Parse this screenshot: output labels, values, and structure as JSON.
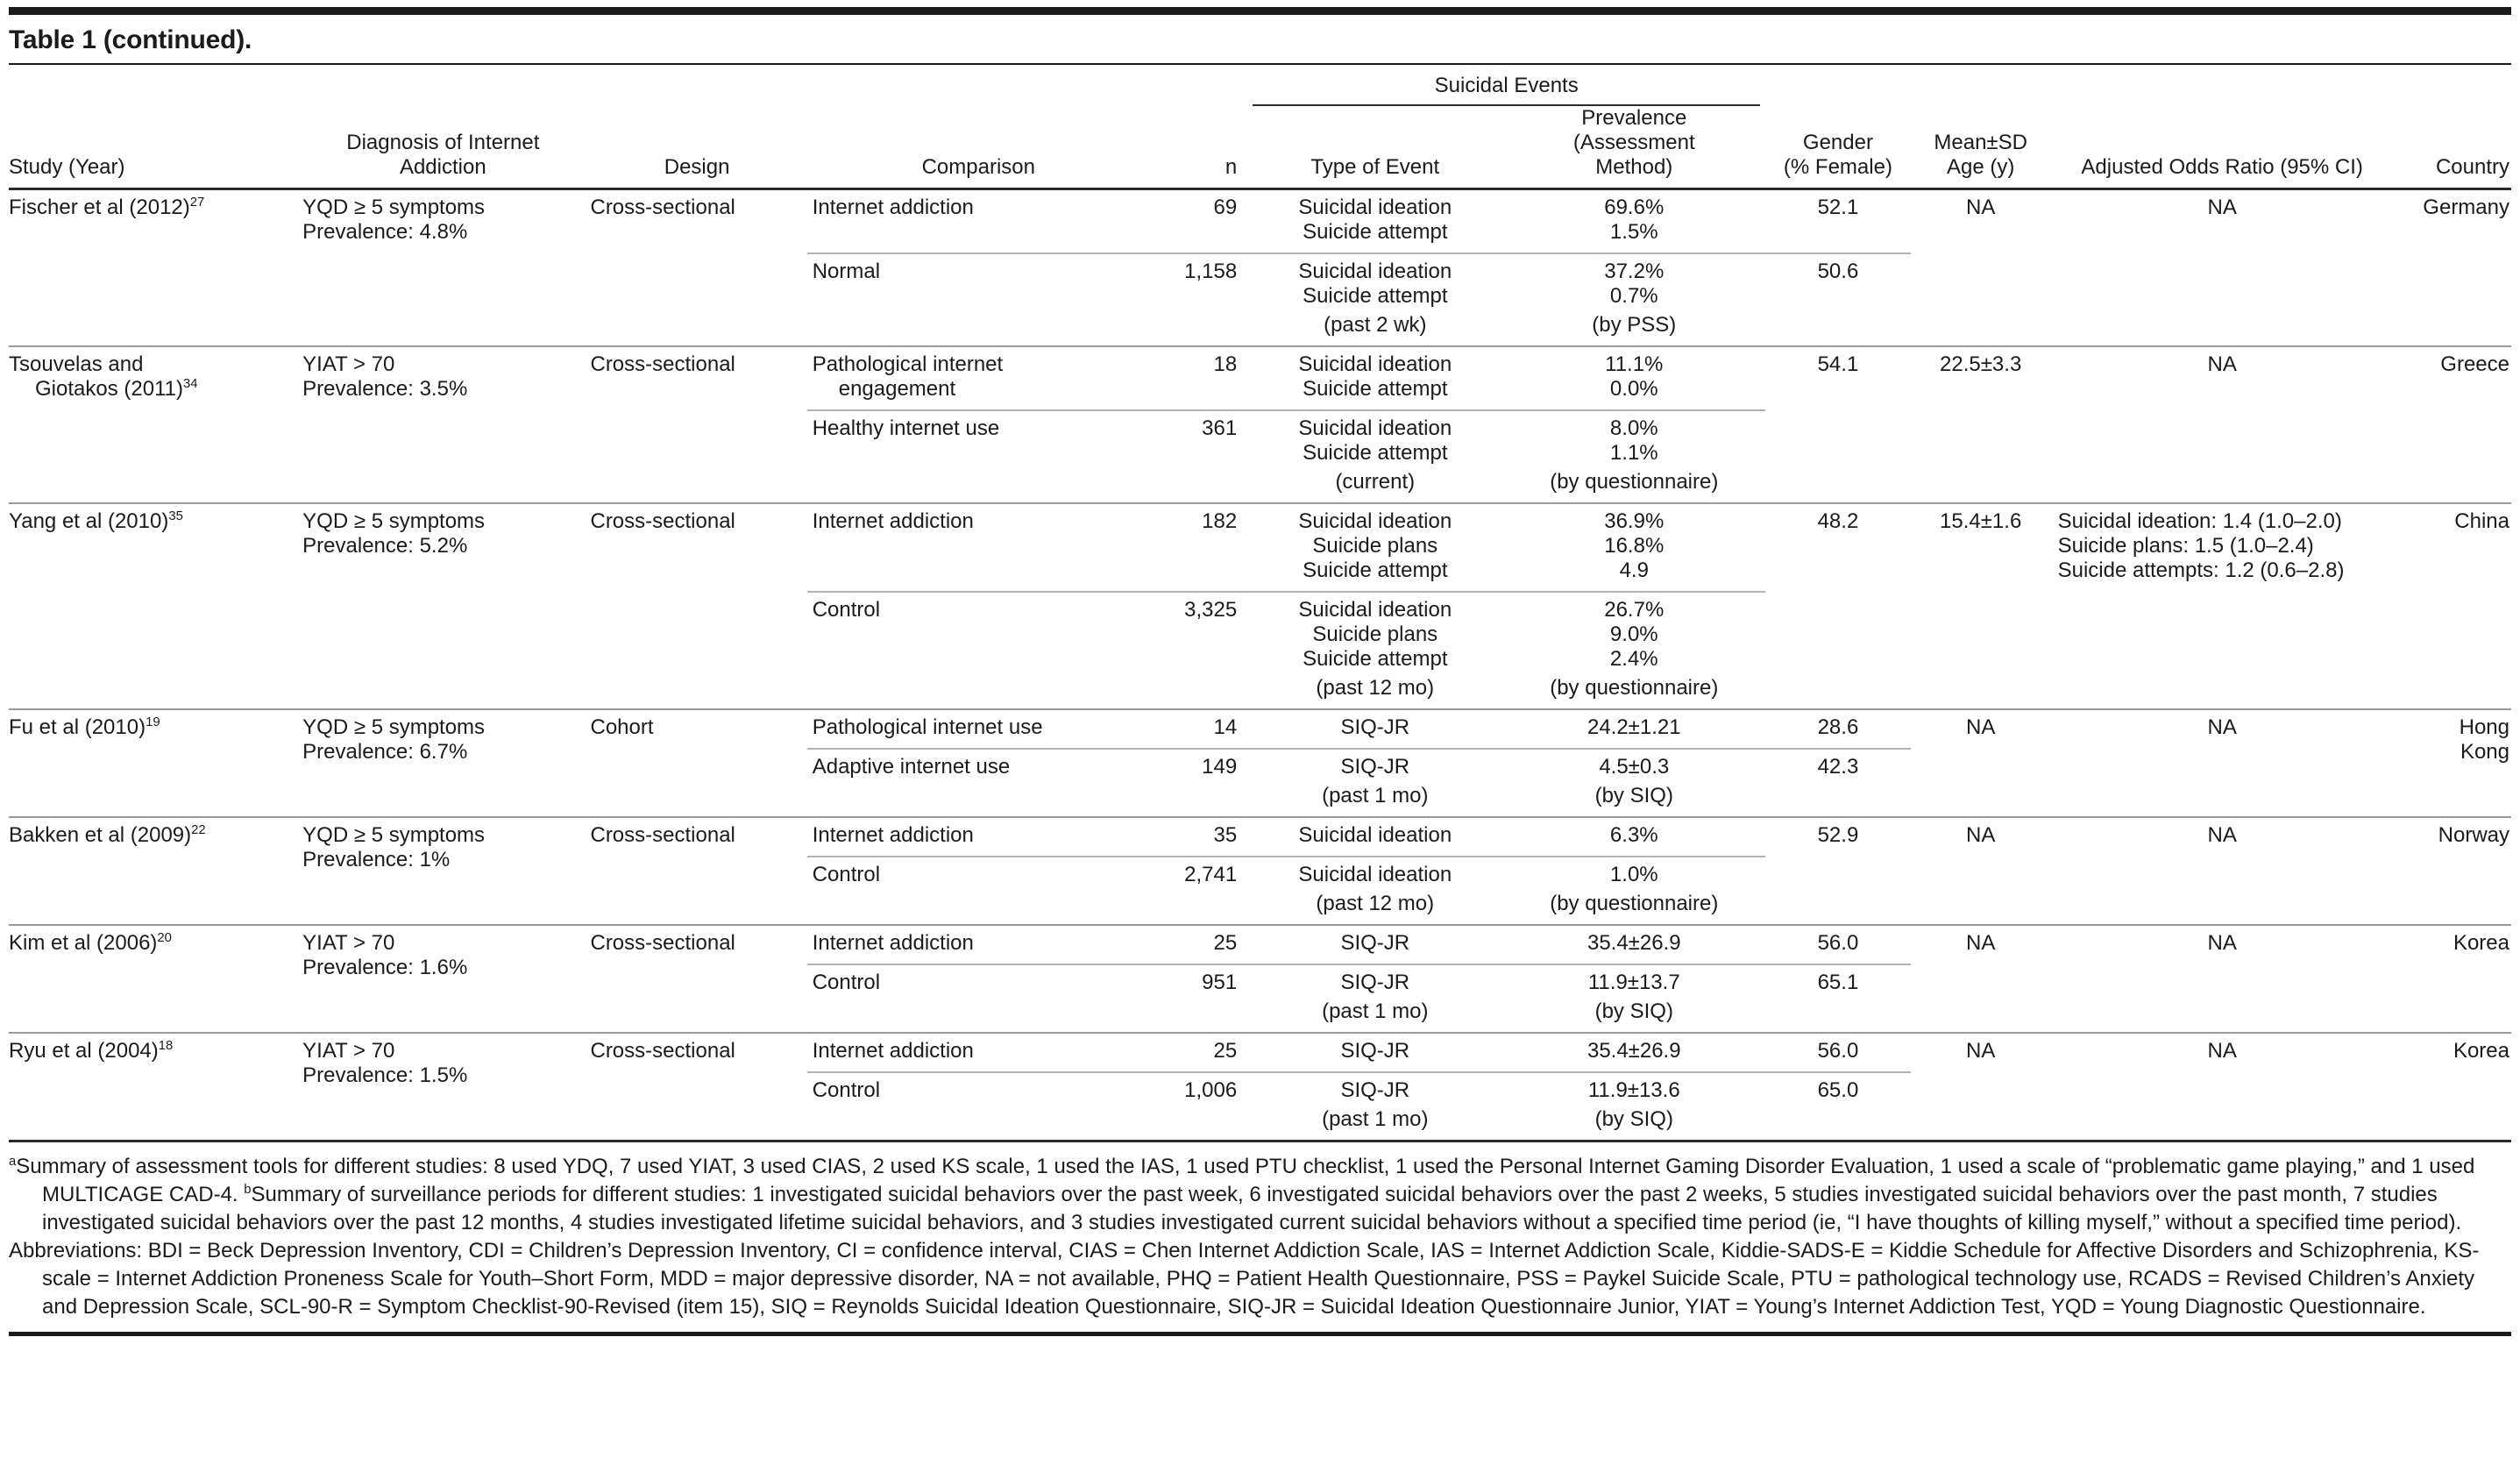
{
  "page": {
    "title": "Table 1 (continued)."
  },
  "colors": {
    "text": "#1b1b1b",
    "rule_dark": "#1a1a1a",
    "rule_gray": "#9a9a9a",
    "rule_light": "#b3b3b3"
  },
  "table": {
    "span_header": {
      "label": "Suicidal Events"
    },
    "columns": {
      "study": "Study (Year)",
      "diagnosis": [
        "Diagnosis of Internet",
        "Addiction"
      ],
      "design": "Design",
      "comparison": "Comparison",
      "n": "n",
      "event": "Type of Event",
      "prevalence": [
        "Prevalence",
        "(Assessment",
        "Method)"
      ],
      "gender": [
        "Gender",
        "(% Female)"
      ],
      "age": [
        "Mean±SD",
        "Age (y)"
      ],
      "aor": "Adjusted Odds Ratio (95% CI)",
      "country": "Country"
    },
    "studies": [
      {
        "study": [
          {
            "text": "Fischer et al (2012)",
            "sup": "27"
          }
        ],
        "diagnosis": [
          "YQD ≥ 5 symptoms",
          "Prevalence: 4.8%"
        ],
        "design": "Cross-sectional",
        "age": "NA",
        "aor": [
          "NA"
        ],
        "aor_align": "center",
        "country": [
          "Germany"
        ],
        "divider_through_gender": true,
        "groups": [
          {
            "comparison": [
              {
                "text": "Internet addiction"
              }
            ],
            "n": "69",
            "events": [
              "Suicidal ideation",
              "Suicide attempt"
            ],
            "prevalence": [
              "69.6%",
              "1.5%"
            ],
            "gender": "52.1"
          },
          {
            "comparison": [
              {
                "text": "Normal"
              }
            ],
            "n": "1,158",
            "events": [
              "Suicidal ideation",
              "Suicide attempt",
              "(past 2 wk)"
            ],
            "prevalence": [
              "37.2%",
              "0.7%",
              "(by PSS)"
            ],
            "gender": "50.6"
          }
        ]
      },
      {
        "study": [
          {
            "text": "Tsouvelas and"
          },
          {
            "text": "Giotakos (2011)",
            "sup": "34",
            "indent": true
          }
        ],
        "diagnosis": [
          "YIAT > 70",
          "Prevalence: 3.5%"
        ],
        "design": "Cross-sectional",
        "age": "22.5±3.3",
        "aor": [
          "NA"
        ],
        "aor_align": "center",
        "country": [
          "Greece"
        ],
        "divider_through_gender": false,
        "groups": [
          {
            "comparison": [
              {
                "text": "Pathological internet"
              },
              {
                "text": "engagement",
                "indent": true
              }
            ],
            "n": "18",
            "events": [
              "Suicidal ideation",
              "Suicide attempt"
            ],
            "prevalence": [
              "11.1%",
              "0.0%"
            ],
            "gender": "54.1"
          },
          {
            "comparison": [
              {
                "text": "Healthy internet use"
              }
            ],
            "n": "361",
            "events": [
              "Suicidal ideation",
              "Suicide attempt",
              "(current)"
            ],
            "prevalence": [
              "8.0%",
              "1.1%",
              "(by questionnaire)"
            ],
            "gender": ""
          }
        ]
      },
      {
        "study": [
          {
            "text": "Yang et al (2010)",
            "sup": "35"
          }
        ],
        "diagnosis": [
          "YQD ≥ 5 symptoms",
          "Prevalence: 5.2%"
        ],
        "design": "Cross-sectional",
        "age": "15.4±1.6",
        "aor": [
          "Suicidal ideation: 1.4 (1.0–2.0)",
          "Suicide plans: 1.5 (1.0–2.4)",
          "Suicide attempts: 1.2 (0.6–2.8)"
        ],
        "aor_align": "left",
        "country": [
          "China"
        ],
        "divider_through_gender": false,
        "groups": [
          {
            "comparison": [
              {
                "text": "Internet addiction"
              }
            ],
            "n": "182",
            "events": [
              "Suicidal ideation",
              "Suicide plans",
              "Suicide attempt"
            ],
            "prevalence": [
              "36.9%",
              "16.8%",
              "4.9"
            ],
            "gender": "48.2"
          },
          {
            "comparison": [
              {
                "text": "Control"
              }
            ],
            "n": "3,325",
            "events": [
              "Suicidal ideation",
              "Suicide plans",
              "Suicide attempt",
              "(past 12 mo)"
            ],
            "prevalence": [
              "26.7%",
              "9.0%",
              "2.4%",
              "(by questionnaire)"
            ],
            "gender": ""
          }
        ]
      },
      {
        "study": [
          {
            "text": "Fu et al (2010)",
            "sup": "19"
          }
        ],
        "diagnosis": [
          "YQD ≥ 5 symptoms",
          "Prevalence: 6.7%"
        ],
        "design": "Cohort",
        "age": "NA",
        "aor": [
          "NA"
        ],
        "aor_align": "center",
        "country": [
          "Hong",
          "Kong"
        ],
        "divider_through_gender": true,
        "groups": [
          {
            "comparison": [
              {
                "text": "Pathological internet use"
              }
            ],
            "n": "14",
            "events": [
              "SIQ-JR"
            ],
            "prevalence": [
              "24.2±1.21"
            ],
            "gender": "28.6"
          },
          {
            "comparison": [
              {
                "text": "Adaptive internet use"
              }
            ],
            "n": "149",
            "events": [
              "SIQ-JR",
              "(past 1 mo)"
            ],
            "prevalence": [
              "4.5±0.3",
              "(by SIQ)"
            ],
            "gender": "42.3"
          }
        ]
      },
      {
        "study": [
          {
            "text": "Bakken et al (2009)",
            "sup": "22"
          }
        ],
        "diagnosis": [
          "YQD ≥ 5 symptoms",
          "Prevalence: 1%"
        ],
        "design": "Cross-sectional",
        "age": "NA",
        "aor": [
          "NA"
        ],
        "aor_align": "center",
        "country": [
          "Norway"
        ],
        "divider_through_gender": false,
        "groups": [
          {
            "comparison": [
              {
                "text": "Internet addiction"
              }
            ],
            "n": "35",
            "events": [
              "Suicidal ideation"
            ],
            "prevalence": [
              "6.3%"
            ],
            "gender": "52.9"
          },
          {
            "comparison": [
              {
                "text": "Control"
              }
            ],
            "n": "2,741",
            "events": [
              "Suicidal ideation",
              "(past 12 mo)"
            ],
            "prevalence": [
              "1.0%",
              "(by questionnaire)"
            ],
            "gender": ""
          }
        ]
      },
      {
        "study": [
          {
            "text": "Kim et al (2006)",
            "sup": "20"
          }
        ],
        "diagnosis": [
          "YIAT > 70",
          "Prevalence: 1.6%"
        ],
        "design": "Cross-sectional",
        "age": "NA",
        "aor": [
          "NA"
        ],
        "aor_align": "center",
        "country": [
          "Korea"
        ],
        "divider_through_gender": true,
        "groups": [
          {
            "comparison": [
              {
                "text": "Internet addiction"
              }
            ],
            "n": "25",
            "events": [
              "SIQ-JR"
            ],
            "prevalence": [
              "35.4±26.9"
            ],
            "gender": "56.0"
          },
          {
            "comparison": [
              {
                "text": "Control"
              }
            ],
            "n": "951",
            "events": [
              "SIQ-JR",
              "(past 1 mo)"
            ],
            "prevalence": [
              "11.9±13.7",
              "(by SIQ)"
            ],
            "gender": "65.1"
          }
        ]
      },
      {
        "study": [
          {
            "text": "Ryu et al (2004)",
            "sup": "18"
          }
        ],
        "diagnosis": [
          "YIAT > 70",
          "Prevalence: 1.5%"
        ],
        "design": "Cross-sectional",
        "age": "NA",
        "aor": [
          "NA"
        ],
        "aor_align": "center",
        "country": [
          "Korea"
        ],
        "divider_through_gender": true,
        "groups": [
          {
            "comparison": [
              {
                "text": "Internet addiction"
              }
            ],
            "n": "25",
            "events": [
              "SIQ-JR"
            ],
            "prevalence": [
              "35.4±26.9"
            ],
            "gender": "56.0"
          },
          {
            "comparison": [
              {
                "text": "Control"
              }
            ],
            "n": "1,006",
            "events": [
              "SIQ-JR",
              "(past 1 mo)"
            ],
            "prevalence": [
              "11.9±13.6",
              "(by SIQ)"
            ],
            "gender": "65.0"
          }
        ]
      }
    ]
  },
  "footnotes": {
    "segments": [
      {
        "sup": "a",
        "text": "Summary of assessment tools for different studies: 8 used YDQ, 7 used YIAT, 3 used CIAS, 2 used KS scale, 1 used the IAS, 1 used PTU checklist, 1 used the Personal Internet Gaming Disorder Evaluation, 1 used a scale of “problematic game playing,” and 1 used MULTICAGE CAD-4.  "
      },
      {
        "sup": "b",
        "text": "Summary of surveillance periods for different studies: 1 investigated suicidal behaviors over the past week, 6 investigated suicidal behaviors over the past 2 weeks, 5 studies investigated suicidal behaviors over the past month, 7 studies investigated suicidal behaviors over the past 12 months, 4 studies investigated lifetime suicidal behaviors, and 3 studies investigated current suicidal behaviors without a specified time period (ie, “I have thoughts of killing myself,” without a specified time period)."
      }
    ],
    "abbreviations": "Abbreviations: BDI = Beck Depression Inventory, CDI = Children’s Depression Inventory, CI = confidence interval, CIAS = Chen Internet Addiction Scale, IAS = Internet Addiction Scale, Kiddie-SADS-E = Kiddie Schedule for Affective Disorders and Schizophrenia, KS-scale = Internet Addiction Proneness Scale for Youth–Short Form, MDD = major depressive disorder, NA = not available, PHQ = Patient Health Questionnaire, PSS = Paykel Suicide Scale, PTU = pathological technology use, RCADS = Revised Children’s Anxiety and Depression Scale, SCL-90-R = Symptom Checklist-90-Revised (item 15), SIQ = Reynolds Suicidal Ideation Questionnaire, SIQ-JR = Suicidal Ideation Questionnaire Junior, YIAT = Young’s Internet Addiction Test, YQD = Young Diagnostic Questionnaire."
  }
}
